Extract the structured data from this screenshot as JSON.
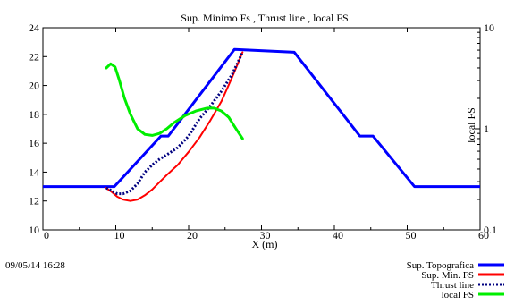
{
  "timestamp": "09/05/14 16:28",
  "chart_data": {
    "type": "line",
    "title": "Sup. Minimo Fs , Thrust line , local FS",
    "xlabel": "X (m)",
    "ylabel": "",
    "y2label": "local FS",
    "xlim": [
      0,
      60
    ],
    "ylim": [
      10,
      24
    ],
    "y2lim": [
      0.1,
      10
    ],
    "y2scale": "log",
    "x_ticks": [
      "0",
      "10",
      "20",
      "30",
      "40",
      "50",
      "60"
    ],
    "y_ticks": [
      "10",
      "12",
      "14",
      "16",
      "18",
      "20",
      "22",
      "24"
    ],
    "y2_ticks": [
      "0.1",
      "1",
      "10"
    ],
    "grid": false,
    "legend_position": "bottom-right",
    "series": [
      {
        "name": "Sup. Topografica",
        "color": "#0000ff",
        "style": "solid",
        "axis": "left",
        "x": [
          0,
          9.8,
          16.2,
          17.2,
          26.3,
          34.5,
          43.5,
          45.3,
          51.0,
          60
        ],
        "y": [
          13.0,
          13.0,
          16.5,
          16.5,
          22.5,
          22.3,
          16.5,
          16.5,
          13.0,
          13.0
        ]
      },
      {
        "name": "Sup. Min. FS",
        "color": "#ff0000",
        "style": "solid",
        "axis": "left",
        "x": [
          8.7,
          9.5,
          10.2,
          11.0,
          12.0,
          13.0,
          14.0,
          15.0,
          16.0,
          17.0,
          18.5,
          20.0,
          21.5,
          23.0,
          24.5,
          26.0,
          27.4
        ],
        "y": [
          12.9,
          12.6,
          12.3,
          12.1,
          12.0,
          12.1,
          12.4,
          12.8,
          13.3,
          13.8,
          14.5,
          15.4,
          16.4,
          17.6,
          18.9,
          20.6,
          22.3
        ]
      },
      {
        "name": "Thrust line",
        "color": "#000080",
        "style": "dotted",
        "axis": "left",
        "x": [
          8.7,
          9.5,
          10.2,
          11.0,
          12.0,
          13.0,
          14.0,
          15.0,
          16.0,
          17.0,
          18.5,
          20.0,
          21.5,
          23.0,
          24.5,
          26.0,
          27.4
        ],
        "y": [
          12.9,
          12.7,
          12.5,
          12.5,
          12.7,
          13.2,
          14.0,
          14.5,
          14.9,
          15.2,
          15.7,
          16.5,
          17.7,
          18.6,
          19.6,
          20.8,
          22.3
        ]
      },
      {
        "name": "local FS",
        "color": "#00ee00",
        "style": "solid",
        "axis": "right",
        "x": [
          8.7,
          9.3,
          9.9,
          10.5,
          11.2,
          12.0,
          13.0,
          14.0,
          15.0,
          16.0,
          17.0,
          18.0,
          19.5,
          21.0,
          22.5,
          23.5,
          24.5,
          25.5,
          26.5,
          27.4
        ],
        "y": [
          4.0,
          4.4,
          4.1,
          3.0,
          2.0,
          1.4,
          1.0,
          0.88,
          0.86,
          0.9,
          1.0,
          1.15,
          1.35,
          1.5,
          1.6,
          1.6,
          1.5,
          1.3,
          1.0,
          0.8
        ]
      }
    ]
  }
}
